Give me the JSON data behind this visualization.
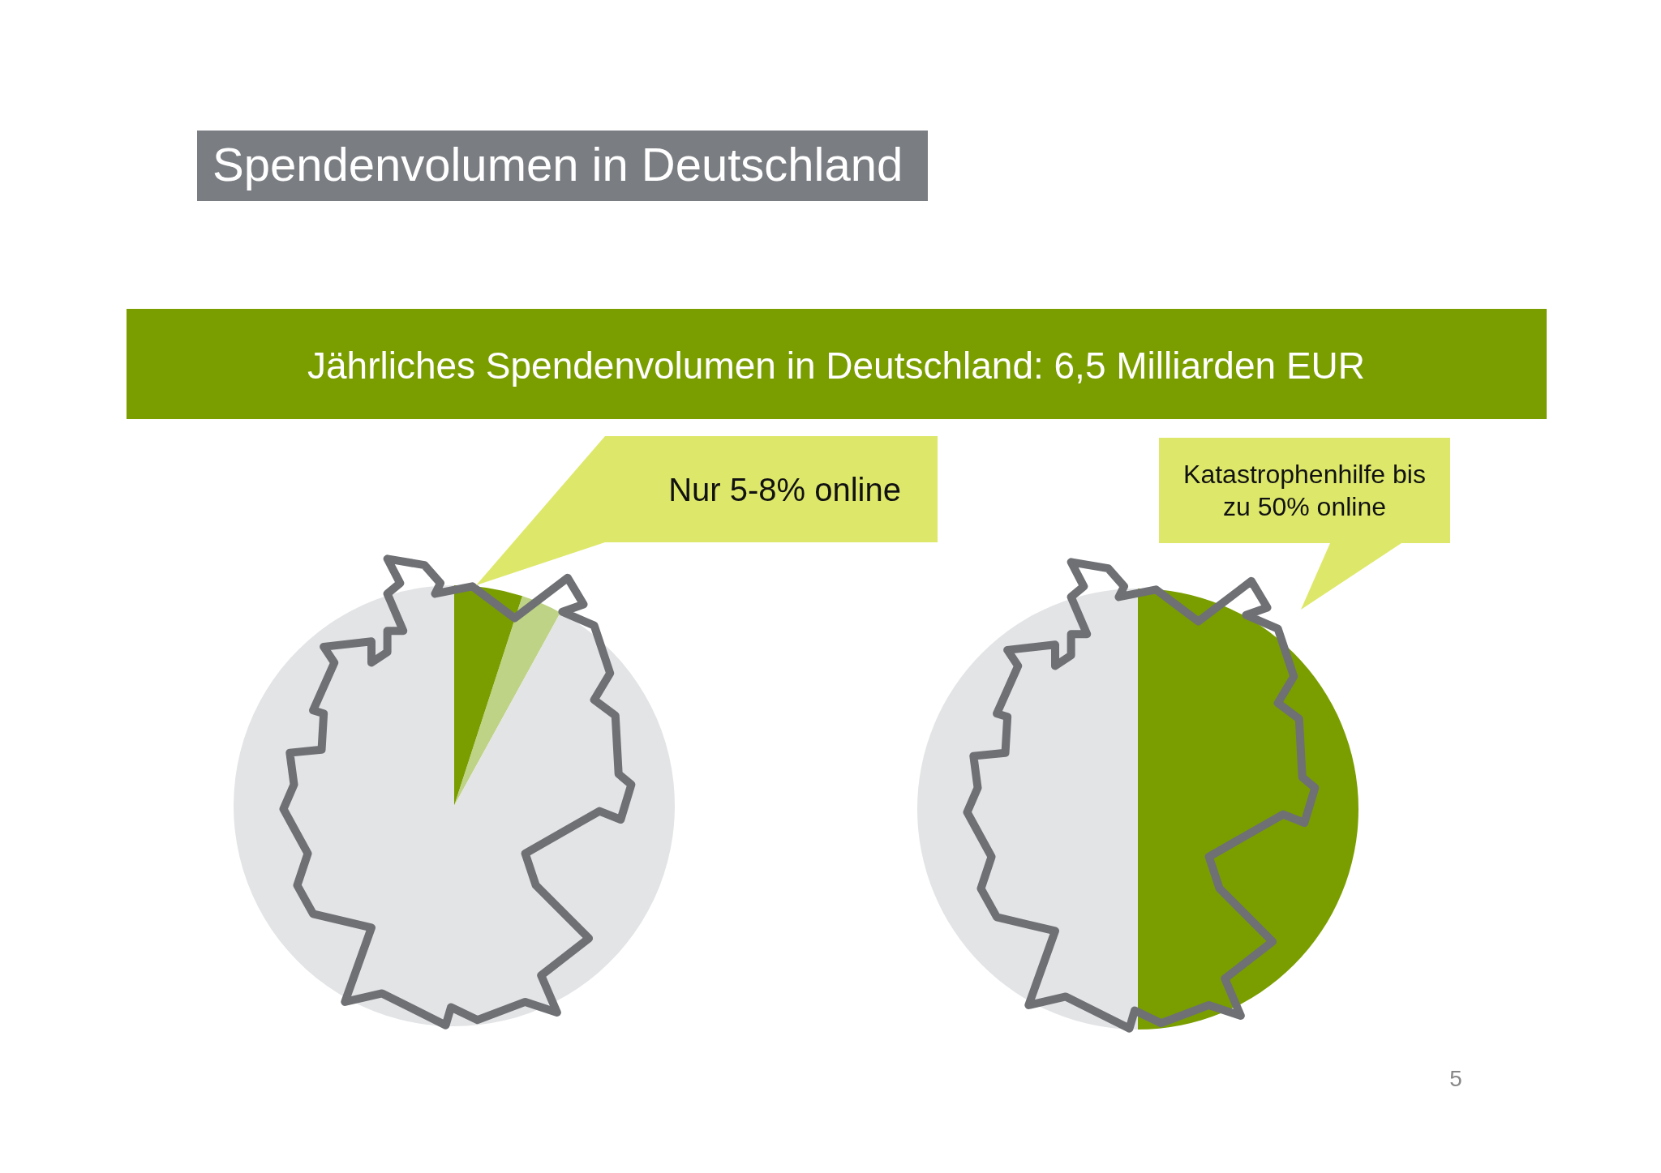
{
  "chart_data": [
    {
      "type": "pie",
      "title": "Spendenvolumen in Deutschland",
      "subtitle": "Jährliches Spendenvolumen in Deutschland: 6,5 Milliarden EUR",
      "categories": [
        null,
        null,
        null
      ],
      "values": [
        5,
        3,
        92
      ],
      "colors": [
        "#7a9e00",
        "#a8c45c",
        "#e3e4e6"
      ],
      "annotations": [
        "Nur 5-8% online"
      ]
    },
    {
      "type": "pie",
      "categories": [
        null,
        null
      ],
      "values": [
        50,
        50
      ],
      "colors": [
        "#7a9e00",
        "#e3e4e6"
      ],
      "annotations": [
        "Katastrophenhilfe bis zu 50% online",
        "5"
      ]
    }
  ]
}
